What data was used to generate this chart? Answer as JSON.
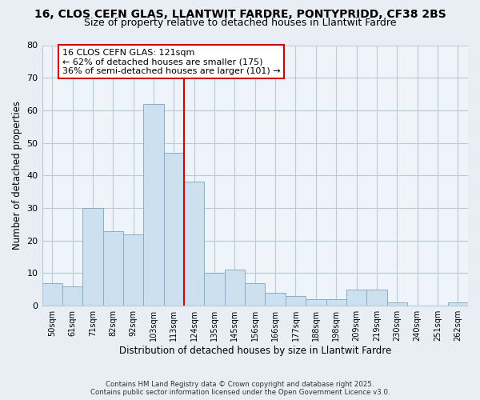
{
  "title": "16, CLOS CEFN GLAS, LLANTWIT FARDRE, PONTYPRIDD, CF38 2BS",
  "subtitle": "Size of property relative to detached houses in Llantwit Fardre",
  "xlabel": "Distribution of detached houses by size in Llantwit Fardre",
  "ylabel": "Number of detached properties",
  "categories": [
    "50sqm",
    "61sqm",
    "71sqm",
    "82sqm",
    "92sqm",
    "103sqm",
    "113sqm",
    "124sqm",
    "135sqm",
    "145sqm",
    "156sqm",
    "166sqm",
    "177sqm",
    "188sqm",
    "198sqm",
    "209sqm",
    "219sqm",
    "230sqm",
    "240sqm",
    "251sqm",
    "262sqm"
  ],
  "values": [
    7,
    6,
    30,
    23,
    22,
    62,
    47,
    38,
    10,
    11,
    7,
    4,
    3,
    2,
    2,
    5,
    5,
    1,
    0,
    0,
    1
  ],
  "bar_color": "#cce0f0",
  "bar_edge_color": "#88aec8",
  "vline_x_index": 6.5,
  "vline_color": "#cc0000",
  "annotation_title": "16 CLOS CEFN GLAS: 121sqm",
  "annotation_line1": "← 62% of detached houses are smaller (175)",
  "annotation_line2": "36% of semi-detached houses are larger (101) →",
  "annotation_box_color": "#ffffff",
  "annotation_box_edge_color": "#cc0000",
  "ylim": [
    0,
    80
  ],
  "yticks": [
    0,
    10,
    20,
    30,
    40,
    50,
    60,
    70,
    80
  ],
  "footnote1": "Contains HM Land Registry data © Crown copyright and database right 2025.",
  "footnote2": "Contains public sector information licensed under the Open Government Licence v3.0.",
  "background_color": "#e8eef4",
  "plot_bg_color": "#eef4f9",
  "grid_color": "#b8ccd8",
  "title_fontsize": 10,
  "subtitle_fontsize": 9,
  "axis_label_fontsize": 8.5,
  "tick_fontsize": 8,
  "annot_fontsize": 8
}
